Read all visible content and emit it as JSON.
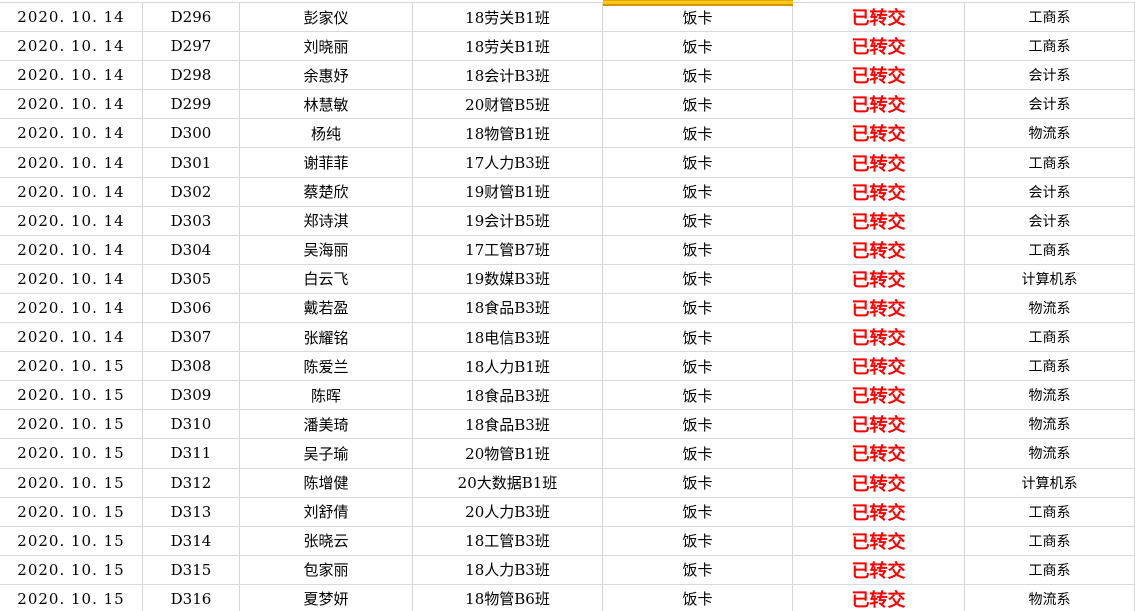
{
  "app": {
    "type": "spreadsheet-table",
    "gridline_color": "#d5d5d5",
    "status_text_color": "#fe0000",
    "highlight_fill": "#fcc81e",
    "highlight_border": "#d49600"
  },
  "table": {
    "columns": [
      "date",
      "id",
      "name",
      "class_name",
      "item",
      "status",
      "department"
    ],
    "rows": [
      {
        "date": "2020. 10. 14",
        "id": "D296",
        "name": "彭家仪",
        "class_name": "18劳关B1班",
        "item": "饭卡",
        "status": "已转交",
        "department": "工商系"
      },
      {
        "date": "2020. 10. 14",
        "id": "D297",
        "name": "刘晓丽",
        "class_name": "18劳关B1班",
        "item": "饭卡",
        "status": "已转交",
        "department": "工商系"
      },
      {
        "date": "2020. 10. 14",
        "id": "D298",
        "name": "余惠妤",
        "class_name": "18会计B3班",
        "item": "饭卡",
        "status": "已转交",
        "department": "会计系"
      },
      {
        "date": "2020. 10. 14",
        "id": "D299",
        "name": "林慧敏",
        "class_name": "20财管B5班",
        "item": "饭卡",
        "status": "已转交",
        "department": "会计系"
      },
      {
        "date": "2020. 10. 14",
        "id": "D300",
        "name": "杨纯",
        "class_name": "18物管B1班",
        "item": "饭卡",
        "status": "已转交",
        "department": "物流系"
      },
      {
        "date": "2020. 10. 14",
        "id": "D301",
        "name": "谢菲菲",
        "class_name": "17人力B3班",
        "item": "饭卡",
        "status": "已转交",
        "department": "工商系"
      },
      {
        "date": "2020. 10. 14",
        "id": "D302",
        "name": "蔡楚欣",
        "class_name": "19财管B1班",
        "item": "饭卡",
        "status": "已转交",
        "department": "会计系"
      },
      {
        "date": "2020. 10. 14",
        "id": "D303",
        "name": "郑诗淇",
        "class_name": "19会计B5班",
        "item": "饭卡",
        "status": "已转交",
        "department": "会计系"
      },
      {
        "date": "2020. 10. 14",
        "id": "D304",
        "name": "吴海丽",
        "class_name": "17工管B7班",
        "item": "饭卡",
        "status": "已转交",
        "department": "工商系"
      },
      {
        "date": "2020. 10. 14",
        "id": "D305",
        "name": "白云飞",
        "class_name": "19数媒B3班",
        "item": "饭卡",
        "status": "已转交",
        "department": "计算机系"
      },
      {
        "date": "2020. 10. 14",
        "id": "D306",
        "name": "戴若盈",
        "class_name": "18食品B3班",
        "item": "饭卡",
        "status": "已转交",
        "department": "物流系"
      },
      {
        "date": "2020. 10. 14",
        "id": "D307",
        "name": "张耀铭",
        "class_name": "18电信B3班",
        "item": "饭卡",
        "status": "已转交",
        "department": "工商系"
      },
      {
        "date": "2020. 10. 15",
        "id": "D308",
        "name": "陈爱兰",
        "class_name": "18人力B1班",
        "item": "饭卡",
        "status": "已转交",
        "department": "工商系"
      },
      {
        "date": "2020. 10. 15",
        "id": "D309",
        "name": "陈晖",
        "class_name": "18食品B3班",
        "item": "饭卡",
        "status": "已转交",
        "department": "物流系"
      },
      {
        "date": "2020. 10. 15",
        "id": "D310",
        "name": "潘美琦",
        "class_name": "18食品B3班",
        "item": "饭卡",
        "status": "已转交",
        "department": "物流系"
      },
      {
        "date": "2020. 10. 15",
        "id": "D311",
        "name": "吴子瑜",
        "class_name": "20物管B1班",
        "item": "饭卡",
        "status": "已转交",
        "department": "物流系"
      },
      {
        "date": "2020. 10. 15",
        "id": "D312",
        "name": "陈增健",
        "class_name": "20大数据B1班",
        "item": "饭卡",
        "status": "已转交",
        "department": "计算机系"
      },
      {
        "date": "2020. 10. 15",
        "id": "D313",
        "name": "刘舒倩",
        "class_name": "20人力B3班",
        "item": "饭卡",
        "status": "已转交",
        "department": "工商系"
      },
      {
        "date": "2020. 10. 15",
        "id": "D314",
        "name": "张晓云",
        "class_name": "18工管B3班",
        "item": "饭卡",
        "status": "已转交",
        "department": "工商系"
      },
      {
        "date": "2020. 10. 15",
        "id": "D315",
        "name": "包家丽",
        "class_name": "18人力B3班",
        "item": "饭卡",
        "status": "已转交",
        "department": "工商系"
      },
      {
        "date": "2020. 10. 15",
        "id": "D316",
        "name": "夏梦妍",
        "class_name": "18物管B6班",
        "item": "饭卡",
        "status": "已转交",
        "department": "物流系"
      }
    ]
  }
}
